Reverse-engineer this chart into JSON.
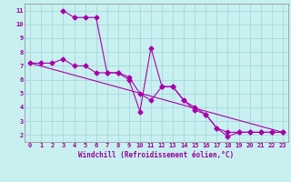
{
  "xlabel": "Windchill (Refroidissement éolien,°C)",
  "bg_color": "#c8f0f0",
  "grid_color": "#a8d8d8",
  "line_color": "#aa00aa",
  "xlim": [
    -0.5,
    23.5
  ],
  "ylim": [
    1.5,
    11.5
  ],
  "xticks": [
    0,
    1,
    2,
    3,
    4,
    5,
    6,
    7,
    8,
    9,
    10,
    11,
    12,
    13,
    14,
    15,
    16,
    17,
    18,
    19,
    20,
    21,
    22,
    23
  ],
  "yticks": [
    2,
    3,
    4,
    5,
    6,
    7,
    8,
    9,
    10,
    11
  ],
  "series1_x": [
    0,
    1,
    2,
    3,
    4,
    5,
    6,
    7,
    8,
    9,
    10,
    11,
    12,
    13,
    14,
    15,
    16,
    17,
    18,
    19,
    20,
    21,
    22,
    23
  ],
  "series1_y": [
    7.2,
    7.2,
    7.2,
    7.5,
    7.0,
    7.0,
    6.5,
    6.5,
    6.5,
    6.2,
    5.0,
    4.5,
    5.5,
    5.5,
    4.5,
    4.0,
    3.5,
    2.5,
    2.2,
    2.2,
    2.2,
    2.2,
    2.2,
    2.2
  ],
  "series2_x": [
    3,
    4,
    5,
    6,
    7,
    8,
    9,
    10,
    11,
    12,
    13,
    14,
    15,
    16,
    17,
    18,
    19,
    20,
    21,
    22,
    23
  ],
  "series2_y": [
    11.0,
    10.5,
    10.5,
    10.5,
    6.5,
    6.5,
    6.0,
    3.7,
    8.3,
    5.5,
    5.5,
    4.5,
    3.8,
    3.5,
    2.5,
    1.9,
    2.2,
    2.2,
    2.2,
    2.2,
    2.2
  ],
  "series3_x": [
    0,
    23
  ],
  "series3_y": [
    7.2,
    2.2
  ]
}
